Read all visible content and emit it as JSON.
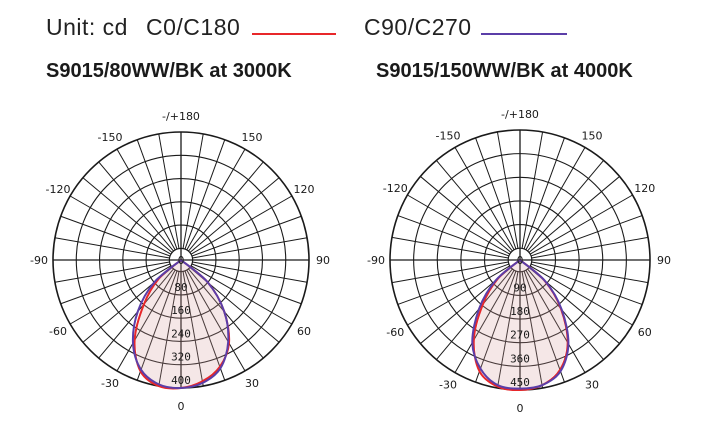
{
  "legend": {
    "unit": "Unit: cd",
    "series": [
      {
        "name": "C0/C180",
        "color": "#e8272a"
      },
      {
        "name": "C90/C270",
        "color": "#5b3ea8"
      }
    ]
  },
  "chart_data": [
    {
      "type": "polar",
      "title": "S9015/80WW/BK at 3000K",
      "angle_labels": [
        "-/+180",
        "150",
        "120",
        "90",
        "60",
        "30",
        "0",
        "-30",
        "-60",
        "-90",
        "-120",
        "-150"
      ],
      "radial_labels": [
        "80",
        "160",
        "240",
        "320",
        "400"
      ],
      "rmax": 400,
      "series": [
        {
          "name": "C0/C180",
          "color": "#e8272a",
          "points": [
            [
              -60,
              0
            ],
            [
              -50,
              90
            ],
            [
              -40,
              180
            ],
            [
              -30,
              290
            ],
            [
              -20,
              370
            ],
            [
              -10,
              400
            ],
            [
              0,
              400
            ],
            [
              10,
              385
            ],
            [
              20,
              355
            ],
            [
              30,
              300
            ],
            [
              40,
              210
            ],
            [
              50,
              110
            ],
            [
              60,
              0
            ]
          ]
        },
        {
          "name": "C90/C270",
          "color": "#5b3ea8",
          "points": [
            [
              -60,
              0
            ],
            [
              -50,
              110
            ],
            [
              -40,
              210
            ],
            [
              -30,
              300
            ],
            [
              -20,
              365
            ],
            [
              -10,
              395
            ],
            [
              0,
              400
            ],
            [
              10,
              390
            ],
            [
              20,
              360
            ],
            [
              30,
              295
            ],
            [
              40,
              210
            ],
            [
              50,
              110
            ],
            [
              60,
              0
            ]
          ]
        }
      ]
    },
    {
      "type": "polar",
      "title": "S9015/150WW/BK at 4000K",
      "angle_labels": [
        "-/+180",
        "150",
        "120",
        "90",
        "60",
        "30",
        "0",
        "-30",
        "-60",
        "-90",
        "-120",
        "-150"
      ],
      "radial_labels": [
        "90",
        "180",
        "270",
        "360",
        "450"
      ],
      "rmax": 450,
      "series": [
        {
          "name": "C0/C180",
          "color": "#e8272a",
          "points": [
            [
              -60,
              0
            ],
            [
              -50,
              100
            ],
            [
              -40,
              200
            ],
            [
              -30,
              320
            ],
            [
              -20,
              410
            ],
            [
              -10,
              445
            ],
            [
              0,
              450
            ],
            [
              10,
              440
            ],
            [
              20,
              405
            ],
            [
              30,
              330
            ],
            [
              40,
              220
            ],
            [
              50,
              110
            ],
            [
              60,
              0
            ]
          ]
        },
        {
          "name": "C90/C270",
          "color": "#5b3ea8",
          "points": [
            [
              -60,
              0
            ],
            [
              -50,
              110
            ],
            [
              -40,
              220
            ],
            [
              -30,
              330
            ],
            [
              -20,
              400
            ],
            [
              -10,
              440
            ],
            [
              0,
              445
            ],
            [
              10,
              440
            ],
            [
              20,
              410
            ],
            [
              30,
              335
            ],
            [
              40,
              225
            ],
            [
              50,
              115
            ],
            [
              60,
              0
            ]
          ]
        }
      ]
    }
  ]
}
